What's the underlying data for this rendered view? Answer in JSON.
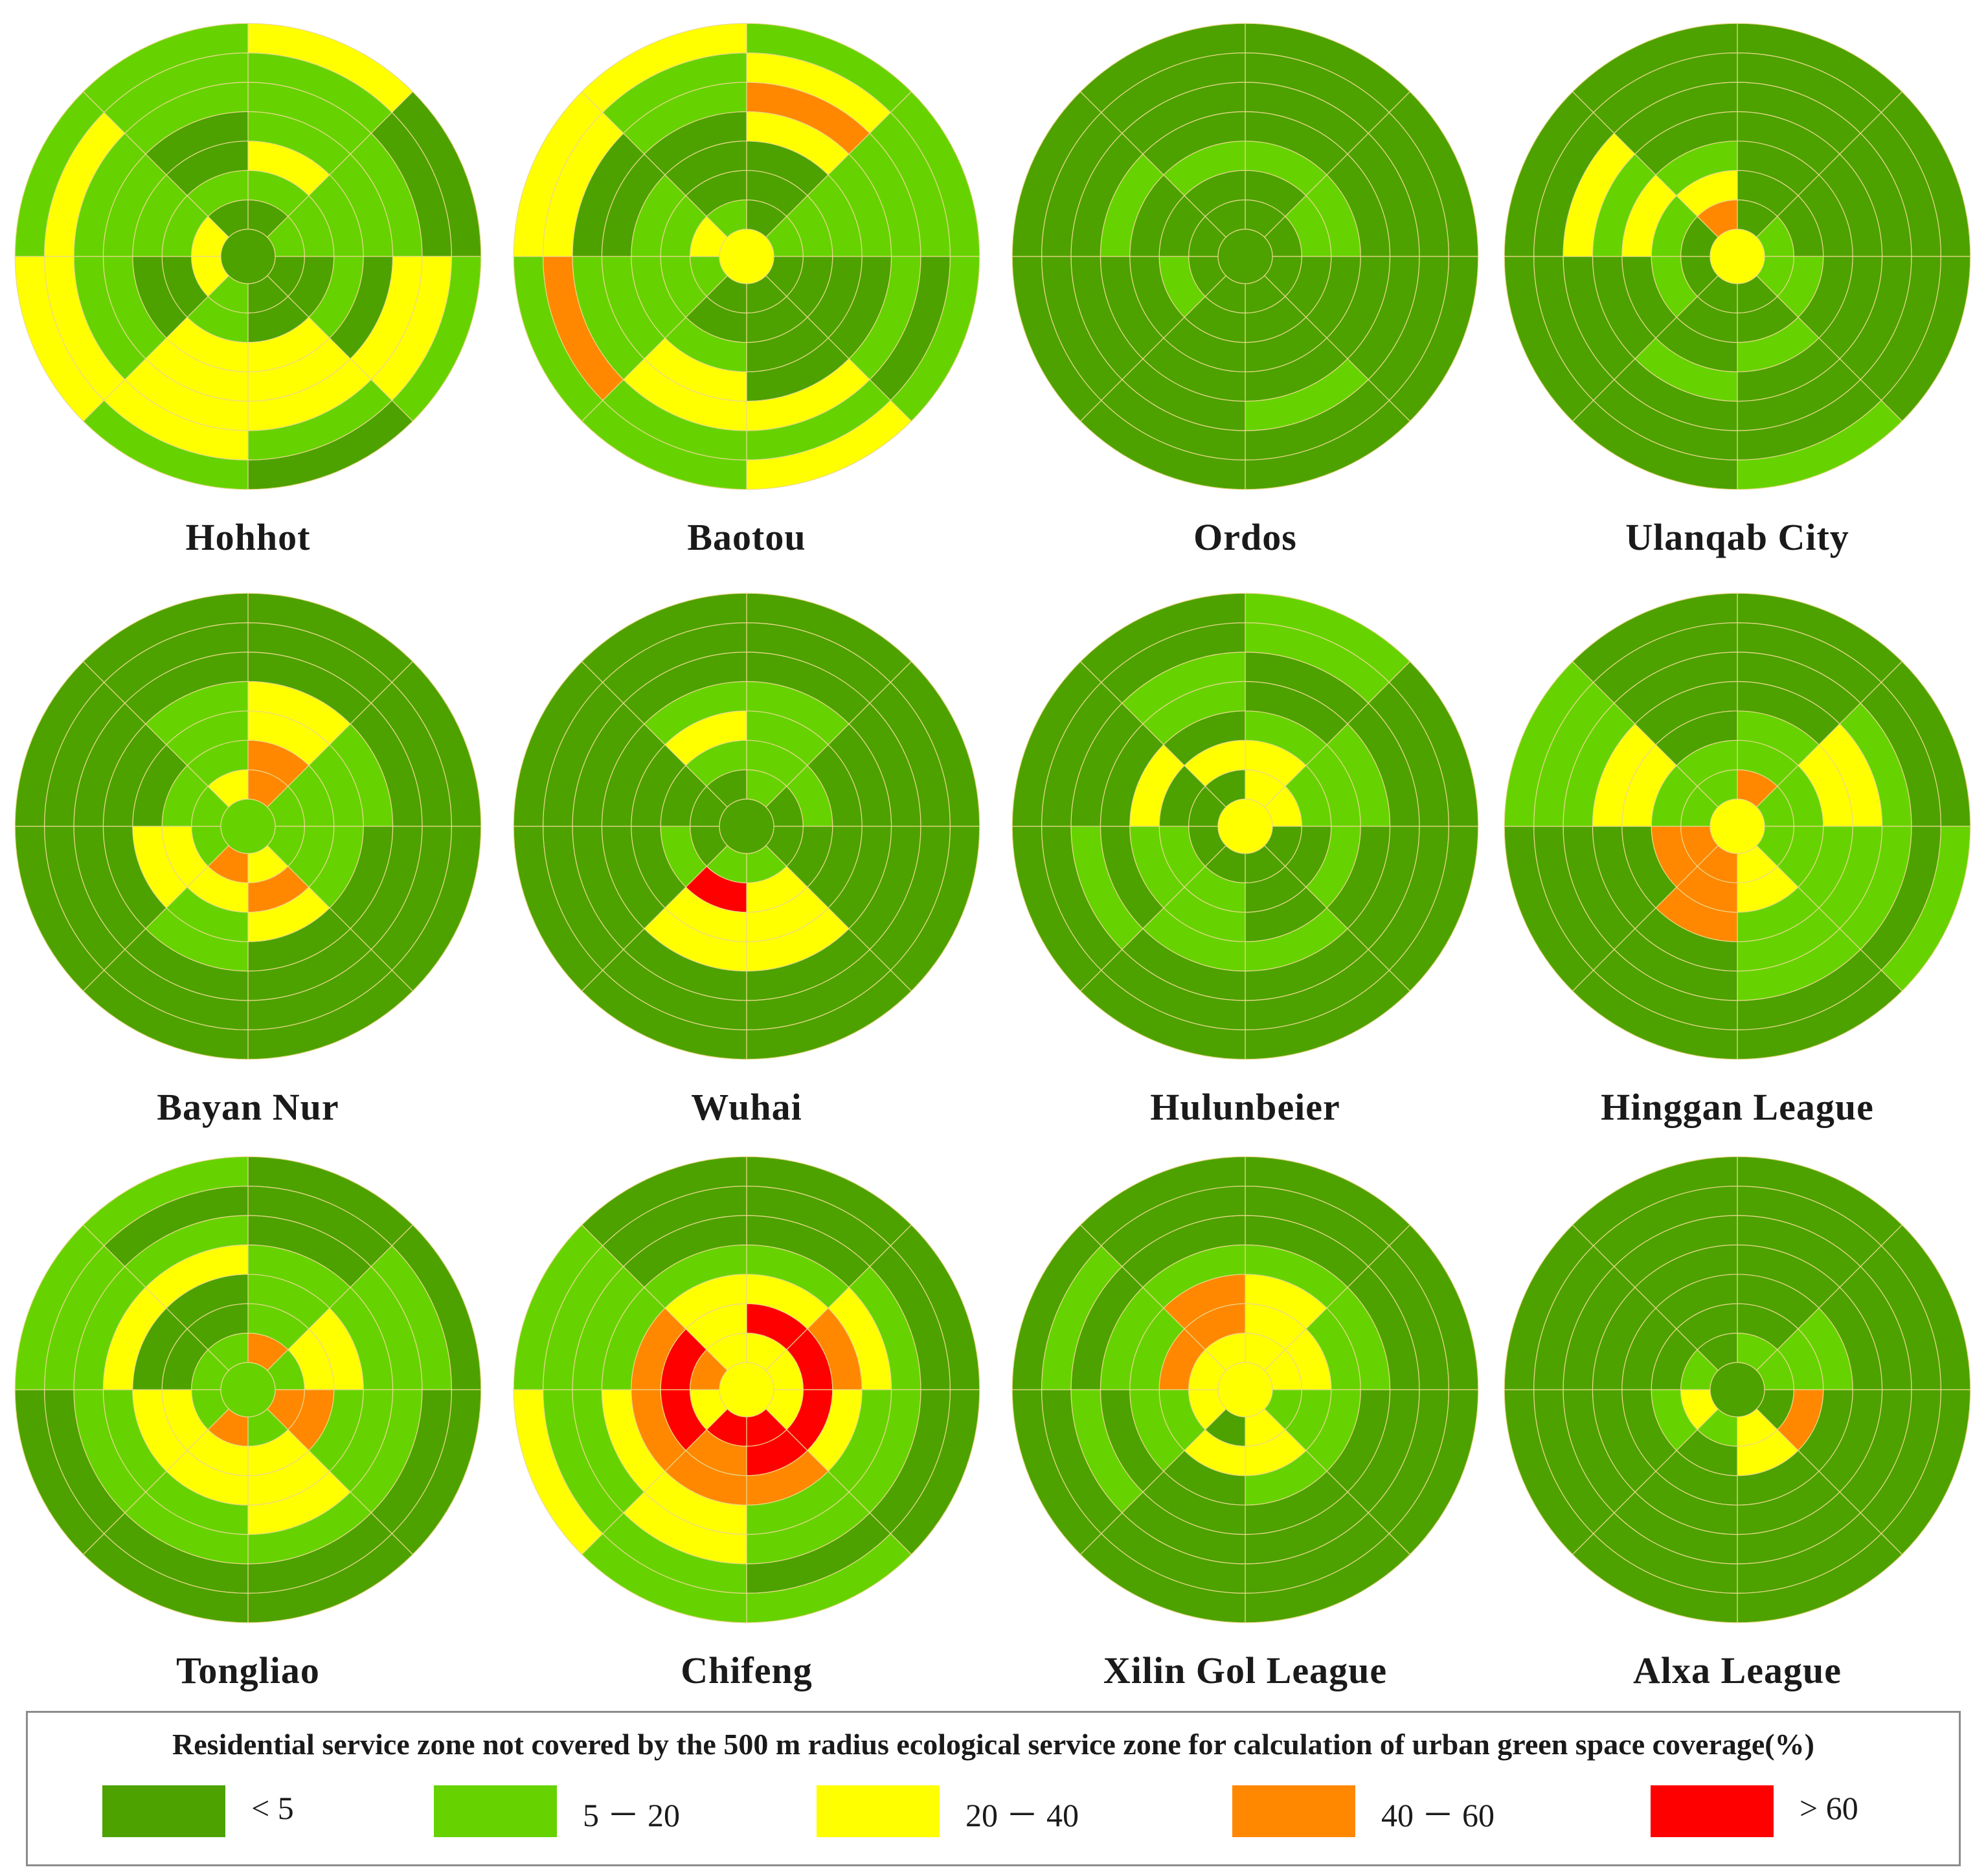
{
  "colors": {
    "c1": "#4da200",
    "c2": "#66d300",
    "c3": "#ffff00",
    "c4": "#ff8800",
    "c5": "#ff0000",
    "grid": "#ead88c"
  },
  "legend": {
    "title": "Residential service zone not covered by the 500 m radius ecological service zone for calculation of urban green space coverage(%)",
    "items": [
      {
        "label": "< 5",
        "color": "#4da200"
      },
      {
        "label": "5 － 20",
        "color": "#66d300"
      },
      {
        "label": "20 － 40",
        "color": "#ffff00"
      },
      {
        "label": "40 － 60",
        "color": "#ff8800"
      },
      {
        "label": "> 60",
        "color": "#ff0000"
      }
    ]
  },
  "chart_data": {
    "type": "polar-heatmap",
    "rings": 7,
    "sectors": 8,
    "sector_order": "clockwise from north: N-NE, NE-E, E-SE, SE-S, S-SW, SW-W, W-NW, NW-N",
    "value_codes": {
      "1": "< 5",
      "2": "5 - 20",
      "3": "20 - 40",
      "4": "40 - 60",
      "5": "> 60"
    },
    "cities": [
      {
        "name": "Hohhot",
        "center": 1,
        "rings": [
          [
            1,
            2,
            1,
            1,
            2,
            3,
            3,
            1
          ],
          [
            2,
            2,
            1,
            1,
            2,
            1,
            2,
            2
          ],
          [
            3,
            2,
            2,
            3,
            3,
            1,
            2,
            1
          ],
          [
            2,
            2,
            1,
            3,
            3,
            2,
            2,
            1
          ],
          [
            2,
            2,
            3,
            3,
            3,
            2,
            2,
            2
          ],
          [
            2,
            1,
            3,
            2,
            3,
            3,
            3,
            2
          ],
          [
            3,
            1,
            2,
            1,
            2,
            3,
            2,
            2
          ]
        ]
      },
      {
        "name": "Baotou",
        "center": 3,
        "rings": [
          [
            1,
            2,
            1,
            1,
            1,
            2,
            3,
            2
          ],
          [
            1,
            2,
            1,
            1,
            1,
            2,
            2,
            1
          ],
          [
            1,
            2,
            1,
            1,
            2,
            2,
            2,
            1
          ],
          [
            3,
            2,
            1,
            1,
            3,
            2,
            1,
            1
          ],
          [
            4,
            2,
            2,
            3,
            3,
            2,
            1,
            2
          ],
          [
            3,
            2,
            1,
            2,
            2,
            4,
            3,
            2
          ],
          [
            2,
            2,
            2,
            3,
            2,
            2,
            3,
            3
          ]
        ]
      },
      {
        "name": "Ordos",
        "center": 1,
        "rings": [
          [
            1,
            1,
            1,
            1,
            1,
            1,
            1,
            1
          ],
          [
            1,
            2,
            1,
            1,
            1,
            2,
            1,
            1
          ],
          [
            2,
            2,
            1,
            1,
            1,
            1,
            1,
            2
          ],
          [
            1,
            1,
            1,
            1,
            1,
            1,
            2,
            1
          ],
          [
            1,
            1,
            1,
            2,
            1,
            1,
            1,
            1
          ],
          [
            1,
            1,
            1,
            1,
            1,
            1,
            1,
            1
          ],
          [
            1,
            1,
            1,
            1,
            1,
            1,
            1,
            1
          ]
        ]
      },
      {
        "name": "Ulanqab City",
        "center": 3,
        "rings": [
          [
            1,
            2,
            2,
            1,
            1,
            1,
            1,
            4
          ],
          [
            1,
            1,
            2,
            1,
            1,
            2,
            2,
            3
          ],
          [
            1,
            1,
            1,
            2,
            1,
            1,
            3,
            2
          ],
          [
            1,
            1,
            1,
            1,
            2,
            1,
            2,
            1
          ],
          [
            1,
            1,
            1,
            1,
            1,
            1,
            3,
            1
          ],
          [
            1,
            1,
            1,
            1,
            1,
            1,
            1,
            1
          ],
          [
            1,
            1,
            1,
            2,
            1,
            1,
            1,
            1
          ]
        ]
      },
      {
        "name": "Bayan Nur",
        "center": 2,
        "rings": [
          [
            4,
            2,
            2,
            3,
            4,
            2,
            2,
            3
          ],
          [
            4,
            2,
            2,
            4,
            3,
            3,
            2,
            2
          ],
          [
            3,
            2,
            2,
            3,
            2,
            3,
            1,
            2
          ],
          [
            3,
            2,
            1,
            1,
            2,
            1,
            1,
            2
          ],
          [
            1,
            1,
            1,
            1,
            1,
            1,
            1,
            1
          ],
          [
            1,
            1,
            1,
            1,
            1,
            1,
            1,
            1
          ],
          [
            1,
            1,
            1,
            1,
            1,
            1,
            1,
            1
          ]
        ]
      },
      {
        "name": "Wuhai",
        "center": 1,
        "rings": [
          [
            2,
            1,
            1,
            2,
            2,
            1,
            1,
            1
          ],
          [
            2,
            2,
            1,
            3,
            5,
            2,
            1,
            2
          ],
          [
            2,
            1,
            1,
            3,
            3,
            1,
            1,
            3
          ],
          [
            2,
            1,
            1,
            3,
            3,
            1,
            1,
            2
          ],
          [
            1,
            1,
            1,
            1,
            1,
            1,
            1,
            1
          ],
          [
            1,
            1,
            1,
            1,
            1,
            1,
            1,
            1
          ],
          [
            1,
            1,
            1,
            1,
            1,
            1,
            1,
            1
          ]
        ]
      },
      {
        "name": "Hulunbeier",
        "center": 3,
        "rings": [
          [
            3,
            3,
            1,
            1,
            1,
            1,
            1,
            1
          ],
          [
            3,
            2,
            1,
            1,
            2,
            2,
            1,
            3
          ],
          [
            2,
            2,
            2,
            1,
            2,
            2,
            3,
            1
          ],
          [
            1,
            2,
            1,
            2,
            2,
            1,
            1,
            2
          ],
          [
            1,
            1,
            1,
            1,
            1,
            2,
            1,
            2
          ],
          [
            2,
            1,
            1,
            1,
            1,
            1,
            1,
            1
          ],
          [
            2,
            1,
            1,
            1,
            1,
            1,
            1,
            1
          ]
        ]
      },
      {
        "name": "Hinggan League",
        "center": 3,
        "rings": [
          [
            4,
            2,
            2,
            3,
            4,
            4,
            2,
            2
          ],
          [
            2,
            2,
            2,
            3,
            4,
            4,
            2,
            2
          ],
          [
            2,
            3,
            2,
            2,
            4,
            1,
            3,
            1
          ],
          [
            1,
            3,
            2,
            2,
            1,
            1,
            3,
            1
          ],
          [
            1,
            2,
            2,
            2,
            1,
            1,
            2,
            1
          ],
          [
            1,
            1,
            1,
            1,
            1,
            1,
            2,
            1
          ],
          [
            1,
            1,
            2,
            1,
            1,
            1,
            2,
            1
          ]
        ]
      },
      {
        "name": "Tongliao",
        "center": 2,
        "rings": [
          [
            4,
            2,
            4,
            2,
            4,
            2,
            2,
            2
          ],
          [
            2,
            3,
            4,
            3,
            3,
            3,
            1,
            1
          ],
          [
            2,
            3,
            2,
            3,
            3,
            3,
            1,
            1
          ],
          [
            2,
            2,
            2,
            3,
            2,
            2,
            3,
            3
          ],
          [
            1,
            2,
            2,
            2,
            2,
            2,
            2,
            2
          ],
          [
            1,
            2,
            1,
            1,
            1,
            1,
            2,
            1
          ],
          [
            1,
            1,
            1,
            1,
            1,
            1,
            2,
            2
          ]
        ]
      },
      {
        "name": "Chifeng",
        "center": 3,
        "rings": [
          [
            3,
            3,
            3,
            5,
            5,
            3,
            4,
            3
          ],
          [
            5,
            5,
            5,
            5,
            4,
            5,
            5,
            3
          ],
          [
            3,
            4,
            3,
            4,
            4,
            4,
            4,
            3
          ],
          [
            2,
            3,
            2,
            2,
            3,
            3,
            2,
            2
          ],
          [
            1,
            2,
            2,
            2,
            3,
            2,
            2,
            1
          ],
          [
            1,
            1,
            1,
            1,
            2,
            2,
            2,
            1
          ],
          [
            1,
            1,
            1,
            2,
            2,
            3,
            2,
            1
          ]
        ]
      },
      {
        "name": "Xilin Gol League",
        "center": 3,
        "rings": [
          [
            3,
            3,
            2,
            3,
            1,
            3,
            3,
            3
          ],
          [
            3,
            3,
            2,
            3,
            3,
            2,
            4,
            4
          ],
          [
            3,
            2,
            2,
            2,
            1,
            2,
            2,
            4
          ],
          [
            2,
            2,
            1,
            1,
            1,
            1,
            2,
            2
          ],
          [
            1,
            1,
            1,
            1,
            1,
            2,
            1,
            1
          ],
          [
            1,
            1,
            1,
            1,
            1,
            1,
            2,
            1
          ],
          [
            1,
            1,
            1,
            1,
            1,
            1,
            1,
            1
          ]
        ]
      },
      {
        "name": "Alxa League",
        "center": 1,
        "rings": [
          [
            2,
            2,
            1,
            3,
            2,
            3,
            2,
            1
          ],
          [
            1,
            2,
            4,
            3,
            1,
            2,
            1,
            1
          ],
          [
            1,
            2,
            1,
            1,
            1,
            1,
            1,
            1
          ],
          [
            1,
            1,
            1,
            1,
            1,
            1,
            1,
            1
          ],
          [
            1,
            1,
            1,
            1,
            1,
            1,
            1,
            1
          ],
          [
            1,
            1,
            1,
            1,
            1,
            1,
            1,
            1
          ],
          [
            1,
            1,
            1,
            1,
            1,
            1,
            1,
            1
          ]
        ]
      }
    ]
  }
}
